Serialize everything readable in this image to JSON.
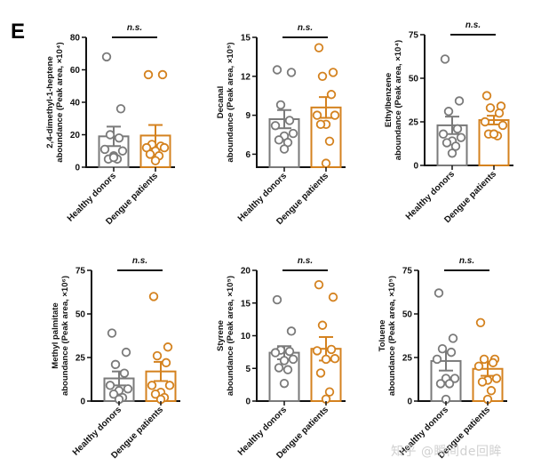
{
  "figure": {
    "panel_letter": "E",
    "watermark": "知乎 @瞬间de回眸",
    "colors": {
      "healthy": "#7a7a7a",
      "dengue": "#d4821f",
      "axis": "#111111"
    }
  },
  "chart_data": [
    {
      "type": "bar",
      "title": "",
      "ylabel_line1": "2,4-dimethyl-1-heptene",
      "ylabel_line2": "abоundance (Peak area, ×10⁴)",
      "categories": [
        "Healthy donors",
        "Dengue patients"
      ],
      "ylim": [
        0,
        80
      ],
      "yticks": [
        0,
        20,
        40,
        60,
        80
      ],
      "means": [
        19,
        19.5
      ],
      "sem": [
        6,
        6.5
      ],
      "points": [
        [
          68,
          36,
          20,
          18,
          11,
          10,
          7,
          5,
          5,
          6
        ],
        [
          57,
          57,
          14,
          13,
          12,
          12,
          10,
          8,
          7,
          4
        ]
      ],
      "significance": "n.s."
    },
    {
      "type": "bar",
      "ylabel_line1": "Decanal",
      "ylabel_line2": "abоundance (Peak area, ×10⁵)",
      "categories": [
        "Healthy donors",
        "Dengue patients"
      ],
      "ylim": [
        5,
        15
      ],
      "yticks": [
        6,
        9,
        12,
        15
      ],
      "means": [
        8.7,
        9.6
      ],
      "sem": [
        0.7,
        0.8
      ],
      "points": [
        [
          12.5,
          12.3,
          9.8,
          8.6,
          8.2,
          7.6,
          7.4,
          7.1,
          6.9,
          6.4
        ],
        [
          14.2,
          12.3,
          12.0,
          10.6,
          9.0,
          9.0,
          8.3,
          8.3,
          7.0,
          5.3
        ]
      ],
      "significance": "n.s."
    },
    {
      "type": "bar",
      "ylabel_line1": "Ethylbenzene",
      "ylabel_line2": "abоundance (Peak area, ×10⁴)",
      "categories": [
        "Healthy donors",
        "Dengue patients"
      ],
      "ylim": [
        0,
        75
      ],
      "yticks": [
        0,
        25,
        50,
        75
      ],
      "means": [
        23,
        26
      ],
      "sem": [
        5,
        2.5
      ],
      "points": [
        [
          61,
          37,
          31,
          21,
          18,
          16,
          14,
          13,
          11,
          7
        ],
        [
          40,
          34,
          33,
          30,
          25,
          23,
          18,
          18,
          17,
          18
        ]
      ],
      "significance": "n.s."
    },
    {
      "type": "bar",
      "ylabel_line1": "Methyl palmitate",
      "ylabel_line2": "abоundance (Peak area, ×10⁶)",
      "categories": [
        "Healthy donors",
        "Dengue patients"
      ],
      "ylim": [
        0,
        75
      ],
      "yticks": [
        0,
        25,
        50,
        75
      ],
      "means": [
        13,
        17
      ],
      "sem": [
        4,
        5.5
      ],
      "points": [
        [
          39,
          28,
          21,
          16,
          9,
          7,
          6,
          4,
          2,
          1
        ],
        [
          60,
          31,
          26,
          22,
          9,
          9,
          5,
          4,
          2,
          1
        ]
      ],
      "significance": "n.s."
    },
    {
      "type": "bar",
      "ylabel_line1": "Styrene",
      "ylabel_line2": "abоundance (Peak area, ×10⁵)",
      "categories": [
        "Healthy donors",
        "Dengue patients"
      ],
      "ylim": [
        0,
        20
      ],
      "yticks": [
        0,
        5,
        10,
        15,
        20
      ],
      "means": [
        7.4,
        8.0
      ],
      "sem": [
        1.0,
        1.8
      ],
      "points": [
        [
          15.5,
          10.7,
          7.8,
          7.6,
          7.4,
          6.4,
          6.2,
          5.1,
          4.8,
          2.7
        ],
        [
          17.8,
          15.9,
          11.6,
          7.9,
          7.7,
          6.5,
          6.4,
          4.3,
          1.4,
          0.3
        ]
      ],
      "significance": "n.s."
    },
    {
      "type": "bar",
      "ylabel_line1": "Toluene",
      "ylabel_line2": "abоundance (Peak area, ×10⁵)",
      "categories": [
        "Healthy donors",
        "Dengue patients"
      ],
      "ylim": [
        0,
        75
      ],
      "yticks": [
        0,
        25,
        50,
        75
      ],
      "means": [
        23,
        18.5
      ],
      "sem": [
        5.5,
        4
      ],
      "points": [
        [
          62,
          36,
          30,
          28,
          24,
          13,
          13,
          10,
          10,
          1
        ],
        [
          45,
          24,
          24,
          22,
          20,
          13,
          12,
          11,
          6,
          1
        ]
      ],
      "significance": "n.s."
    }
  ]
}
